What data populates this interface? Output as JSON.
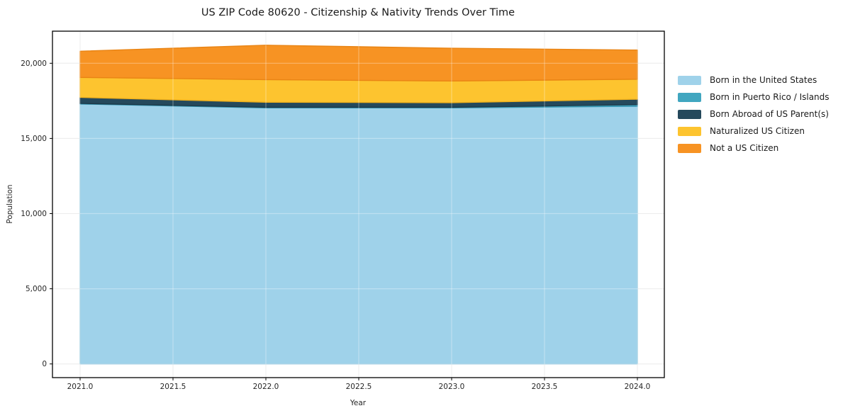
{
  "chart_data": {
    "type": "area",
    "stacked": true,
    "title": "US ZIP Code 80620 - Citizenship & Nativity Trends Over Time",
    "xlabel": "Year",
    "ylabel": "Population",
    "x": [
      2021,
      2022,
      2023,
      2024
    ],
    "xlim": [
      2020.85,
      2024.15
    ],
    "ylim": [
      -900,
      22100
    ],
    "grid": true,
    "legend_position": "right",
    "series": [
      {
        "name": "Born in the United States",
        "color": "#9fd2ea",
        "edge": "#8cc4de",
        "values": [
          17290,
          17030,
          17030,
          17140
        ]
      },
      {
        "name": "Born in Puerto Rico / Islands",
        "color": "#41a6c0",
        "edge": "#3795b0",
        "values": [
          40,
          40,
          40,
          110
        ]
      },
      {
        "name": "Born Abroad of US Parent(s)",
        "color": "#25495c",
        "edge": "#1d3b4b",
        "values": [
          400,
          340,
          310,
          360
        ]
      },
      {
        "name": "Naturalized US Citizen",
        "color": "#fdc42f",
        "edge": "#f0b01c",
        "values": [
          1330,
          1500,
          1440,
          1330
        ]
      },
      {
        "name": "Not a US Citizen",
        "color": "#f79323",
        "edge": "#e98414",
        "values": [
          1740,
          2290,
          2180,
          1940
        ]
      }
    ],
    "x_ticks": [
      {
        "v": 2021.0,
        "label": "2021.0"
      },
      {
        "v": 2021.5,
        "label": "2021.5"
      },
      {
        "v": 2022.0,
        "label": "2022.0"
      },
      {
        "v": 2022.5,
        "label": "2022.5"
      },
      {
        "v": 2023.0,
        "label": "2023.0"
      },
      {
        "v": 2023.5,
        "label": "2023.5"
      },
      {
        "v": 2024.0,
        "label": "2024.0"
      }
    ],
    "y_ticks": [
      {
        "v": 0,
        "label": "0"
      },
      {
        "v": 5000,
        "label": "5,000"
      },
      {
        "v": 10000,
        "label": "10,000"
      },
      {
        "v": 15000,
        "label": "15,000"
      },
      {
        "v": 20000,
        "label": "20,000"
      }
    ],
    "colors": {
      "frame": "#000000",
      "grid_under": "#e3e3e3",
      "grid_over": "rgba(255,255,255,0.32)",
      "text": "#262626"
    }
  }
}
